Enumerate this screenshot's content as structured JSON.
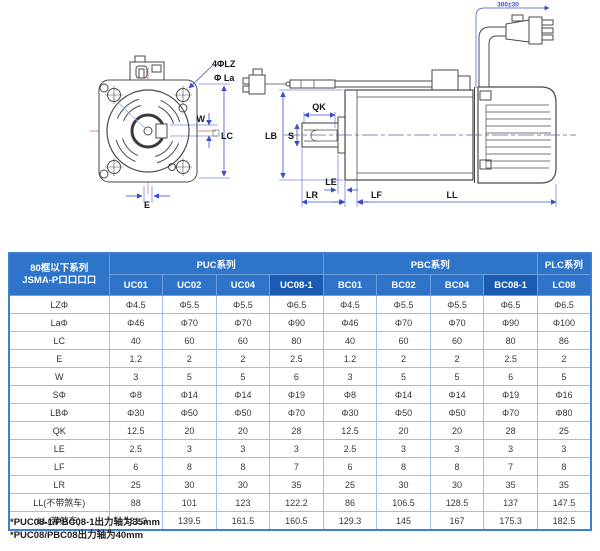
{
  "labels": {
    "front": {
      "bolt_holes": "4ΦLZ",
      "flange": "Φ La",
      "w": "W",
      "lc": "LC",
      "e": "E"
    },
    "side": {
      "qk": "QK",
      "lb": "LB",
      "s": "S",
      "le": "LE",
      "lr": "LR",
      "lf": "LF",
      "ll": "LL",
      "cable_len": "300±30"
    }
  },
  "table": {
    "corner_header": [
      "80框以下系列",
      "JSMA-P口口口口"
    ],
    "groups": [
      {
        "label": "PUC系列",
        "span": 4
      },
      {
        "label": "PBC系列",
        "span": 4
      },
      {
        "label": "PLC系列",
        "span": 1
      }
    ],
    "models": [
      "UC01",
      "UC02",
      "UC04",
      "UC08-1",
      "BC01",
      "BC02",
      "BC04",
      "BC08-1",
      "LC08"
    ],
    "highlight_models": [
      "UC08-1",
      "BC08-1"
    ],
    "rows": [
      {
        "param": "LZΦ",
        "values": [
          "Φ4.5",
          "Φ5.5",
          "Φ5.5",
          "Φ6.5",
          "Φ4.5",
          "Φ5.5",
          "Φ5.5",
          "Φ6.5",
          "Φ6.5"
        ]
      },
      {
        "param": "LaΦ",
        "values": [
          "Φ46",
          "Φ70",
          "Φ70",
          "Φ90",
          "Φ46",
          "Φ70",
          "Φ70",
          "Φ90",
          "Φ100"
        ]
      },
      {
        "param": "LC",
        "values": [
          "40",
          "60",
          "60",
          "80",
          "40",
          "60",
          "60",
          "80",
          "86"
        ]
      },
      {
        "param": "E",
        "values": [
          "1.2",
          "2",
          "2",
          "2.5",
          "1.2",
          "2",
          "2",
          "2.5",
          "2"
        ]
      },
      {
        "param": "W",
        "values": [
          "3",
          "5",
          "5",
          "6",
          "3",
          "5",
          "5",
          "6",
          "5"
        ]
      },
      {
        "param": "SΦ",
        "values": [
          "Φ8",
          "Φ14",
          "Φ14",
          "Φ19",
          "Φ8",
          "Φ14",
          "Φ14",
          "Φ19",
          "Φ16"
        ]
      },
      {
        "param": "LBΦ",
        "values": [
          "Φ30",
          "Φ50",
          "Φ50",
          "Φ70",
          "Φ30",
          "Φ50",
          "Φ50",
          "Φ70",
          "Φ80"
        ]
      },
      {
        "param": "QK",
        "values": [
          "12.5",
          "20",
          "20",
          "28",
          "12.5",
          "20",
          "20",
          "28",
          "25"
        ]
      },
      {
        "param": "LE",
        "values": [
          "2.5",
          "3",
          "3",
          "3",
          "2.5",
          "3",
          "3",
          "3",
          "3"
        ]
      },
      {
        "param": "LF",
        "values": [
          "6",
          "8",
          "8",
          "7",
          "6",
          "8",
          "8",
          "7",
          "8"
        ]
      },
      {
        "param": "LR",
        "values": [
          "25",
          "30",
          "30",
          "35",
          "25",
          "30",
          "30",
          "35",
          "35"
        ]
      },
      {
        "param": "LL(不带煞车)",
        "values": [
          "88",
          "101",
          "123",
          "122.2",
          "86",
          "106.5",
          "128.5",
          "137",
          "147.5"
        ]
      },
      {
        "param": "LL(带煞车)",
        "values": [
          "131.3",
          "139.5",
          "161.5",
          "160.5",
          "129.3",
          "145",
          "167",
          "175.3",
          "182.5"
        ]
      }
    ]
  },
  "footnotes": [
    "*PUC08-1/PBC08-1出力轴为35mm",
    "*PUC08/PBC08出力轴为40mm"
  ],
  "colors": {
    "header_blue": "#2e74c9",
    "header_dark_blue": "#1a5cb2",
    "dimension_blue": "#3b50c8",
    "centerline_red": "#d98c8c",
    "drawing_line": "#4a4a4a"
  }
}
